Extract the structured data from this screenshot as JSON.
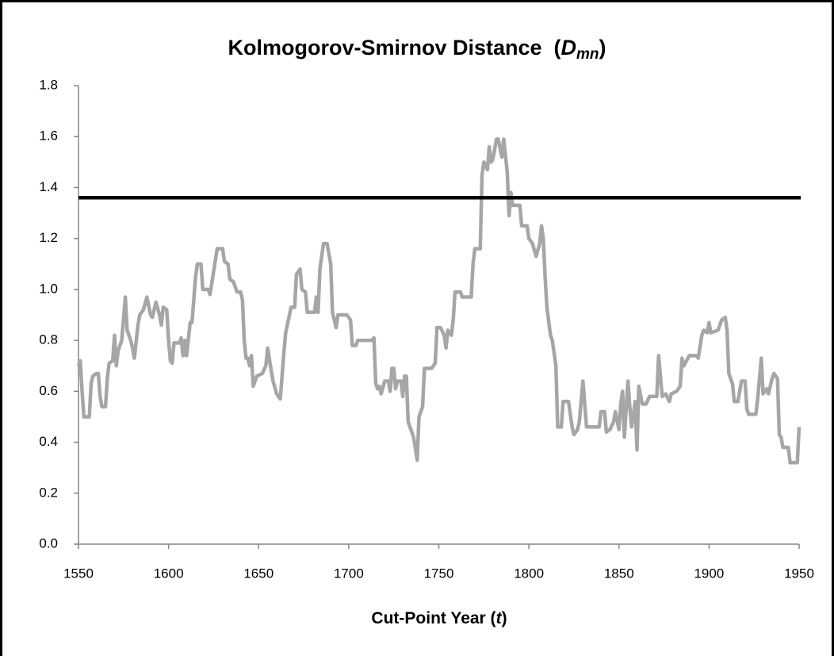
{
  "chart_data": {
    "type": "line",
    "title": [
      "Kolmogorov-Smirnov Distance  (",
      "D",
      "mn",
      ")"
    ],
    "x_label": [
      "Cut-Point Year (",
      "t",
      ")"
    ],
    "x": [
      1550,
      1551,
      1552,
      1553,
      1556,
      1557,
      1558,
      1560,
      1561,
      1562,
      1563,
      1565,
      1566,
      1567,
      1569,
      1570,
      1571,
      1572,
      1574,
      1576,
      1577,
      1579,
      1580,
      1581,
      1583,
      1584,
      1586,
      1588,
      1590,
      1591,
      1593,
      1595,
      1596,
      1597,
      1599,
      1600,
      1601,
      1602,
      1603,
      1606,
      1607,
      1608,
      1609,
      1610,
      1612,
      1613,
      1615,
      1616,
      1618,
      1619,
      1622,
      1623,
      1627,
      1630,
      1631,
      1633,
      1634,
      1636,
      1638,
      1640,
      1641,
      1642,
      1643,
      1644,
      1645,
      1646,
      1647,
      1649,
      1652,
      1654,
      1655,
      1657,
      1658,
      1660,
      1662,
      1664,
      1665,
      1668,
      1670,
      1671,
      1673,
      1674,
      1676,
      1677,
      1681,
      1682,
      1683,
      1684,
      1686,
      1688,
      1690,
      1691,
      1692,
      1693,
      1694,
      1699,
      1701,
      1702,
      1704,
      1705,
      1713,
      1714,
      1715,
      1716,
      1717,
      1718,
      1720,
      1722,
      1723,
      1724,
      1725,
      1726,
      1727,
      1729,
      1730,
      1731,
      1732,
      1733,
      1734,
      1736,
      1738,
      1739,
      1741,
      1742,
      1746,
      1748,
      1749,
      1751,
      1753,
      1754,
      1755,
      1757,
      1758,
      1759,
      1762,
      1763,
      1768,
      1769,
      1770,
      1773,
      1774,
      1775,
      1777,
      1778,
      1779,
      1780,
      1782,
      1783,
      1785,
      1786,
      1788,
      1789,
      1790,
      1791,
      1795,
      1796,
      1799,
      1800,
      1802,
      1804,
      1806,
      1807,
      1808,
      1809,
      1810,
      1812,
      1813,
      1815,
      1816,
      1818,
      1819,
      1822,
      1824,
      1825,
      1827,
      1828,
      1830,
      1832,
      1839,
      1840,
      1842,
      1843,
      1845,
      1847,
      1848,
      1850,
      1851,
      1852,
      1853,
      1855,
      1856,
      1857,
      1859,
      1860,
      1861,
      1863,
      1865,
      1867,
      1871,
      1872,
      1874,
      1876,
      1878,
      1879,
      1882,
      1884,
      1885,
      1886,
      1889,
      1893,
      1894,
      1896,
      1897,
      1899,
      1900,
      1901,
      1905,
      1907,
      1909,
      1910,
      1911,
      1913,
      1914,
      1916,
      1918,
      1920,
      1921,
      1922,
      1926,
      1927,
      1929,
      1930,
      1932,
      1933,
      1935,
      1936,
      1938,
      1939,
      1940,
      1941,
      1944,
      1945,
      1949,
      1950
    ],
    "series": [
      {
        "color": "#a6a6a6",
        "values": [
          0.7,
          0.72,
          0.6,
          0.5,
          0.5,
          0.63,
          0.66,
          0.67,
          0.67,
          0.58,
          0.54,
          0.54,
          0.65,
          0.71,
          0.72,
          0.82,
          0.7,
          0.76,
          0.8,
          0.97,
          0.84,
          0.8,
          0.77,
          0.73,
          0.86,
          0.9,
          0.92,
          0.97,
          0.9,
          0.89,
          0.95,
          0.9,
          0.86,
          0.93,
          0.92,
          0.8,
          0.72,
          0.71,
          0.79,
          0.79,
          0.81,
          0.74,
          0.8,
          0.74,
          0.87,
          0.87,
          1.05,
          1.1,
          1.1,
          1.0,
          1.0,
          0.98,
          1.16,
          1.16,
          1.11,
          1.1,
          1.04,
          1.03,
          0.99,
          0.99,
          0.96,
          0.8,
          0.73,
          0.73,
          0.7,
          0.74,
          0.62,
          0.66,
          0.67,
          0.7,
          0.77,
          0.68,
          0.64,
          0.59,
          0.57,
          0.75,
          0.83,
          0.93,
          0.93,
          1.06,
          1.08,
          1.0,
          0.99,
          0.91,
          0.91,
          0.97,
          0.91,
          1.08,
          1.18,
          1.18,
          1.1,
          0.91,
          0.88,
          0.85,
          0.9,
          0.9,
          0.88,
          0.78,
          0.78,
          0.8,
          0.8,
          0.81,
          0.63,
          0.61,
          0.62,
          0.59,
          0.64,
          0.64,
          0.6,
          0.69,
          0.69,
          0.61,
          0.64,
          0.64,
          0.58,
          0.66,
          0.66,
          0.48,
          0.46,
          0.42,
          0.33,
          0.5,
          0.54,
          0.69,
          0.69,
          0.71,
          0.85,
          0.85,
          0.82,
          0.77,
          0.84,
          0.82,
          0.88,
          0.99,
          0.99,
          0.97,
          0.97,
          1.1,
          1.16,
          1.16,
          1.45,
          1.5,
          1.47,
          1.56,
          1.5,
          1.51,
          1.59,
          1.59,
          1.52,
          1.59,
          1.46,
          1.29,
          1.38,
          1.33,
          1.33,
          1.25,
          1.25,
          1.2,
          1.18,
          1.13,
          1.18,
          1.25,
          1.2,
          1.05,
          0.93,
          0.82,
          0.8,
          0.7,
          0.46,
          0.46,
          0.56,
          0.56,
          0.46,
          0.43,
          0.45,
          0.48,
          0.64,
          0.46,
          0.46,
          0.52,
          0.52,
          0.44,
          0.45,
          0.48,
          0.52,
          0.45,
          0.55,
          0.6,
          0.42,
          0.64,
          0.54,
          0.46,
          0.56,
          0.37,
          0.62,
          0.55,
          0.55,
          0.58,
          0.58,
          0.74,
          0.58,
          0.59,
          0.56,
          0.59,
          0.6,
          0.62,
          0.73,
          0.7,
          0.74,
          0.74,
          0.73,
          0.82,
          0.84,
          0.83,
          0.87,
          0.83,
          0.84,
          0.88,
          0.89,
          0.84,
          0.67,
          0.63,
          0.56,
          0.56,
          0.64,
          0.64,
          0.53,
          0.51,
          0.51,
          0.57,
          0.73,
          0.59,
          0.61,
          0.59,
          0.65,
          0.67,
          0.65,
          0.43,
          0.42,
          0.38,
          0.38,
          0.32,
          0.32,
          0.46
        ]
      }
    ],
    "hline": {
      "value": 1.36,
      "color": "#000000"
    },
    "xlim": [
      1550,
      1950
    ],
    "xticks": [
      1550,
      1600,
      1650,
      1700,
      1750,
      1800,
      1850,
      1900,
      1950
    ],
    "ylim": [
      0,
      1.8
    ],
    "yticks": [
      {
        "value": 0,
        "label": "0.0"
      },
      0.2,
      0.4,
      0.6,
      0.8,
      {
        "value": 1,
        "label": "1.0"
      },
      1.2,
      1.4,
      1.6,
      1.8
    ],
    "grid": false
  }
}
